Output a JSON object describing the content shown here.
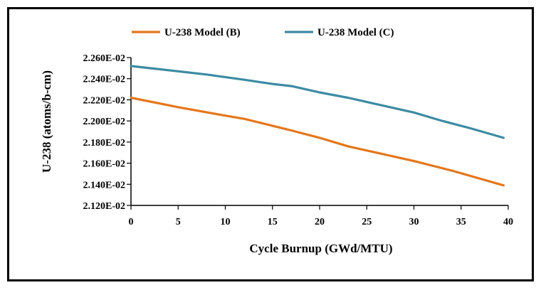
{
  "chart_data": {
    "type": "line",
    "title": "",
    "xlabel": "Cycle Burnup  (GWd/MTU)",
    "ylabel": "U-238 (atoms/b-cm)",
    "xlim": [
      0,
      40
    ],
    "ylim": [
      0.0212,
      0.0226
    ],
    "x_ticks": [
      0,
      5,
      10,
      15,
      20,
      25,
      30,
      35,
      40
    ],
    "y_ticks": [
      0.0212,
      0.0214,
      0.0216,
      0.0218,
      0.022,
      0.0222,
      0.0224,
      0.0226
    ],
    "y_tick_labels": [
      "2.120E-02",
      "2.140E-02",
      "2.160E-02",
      "2.180E-02",
      "2.200E-02",
      "2.220E-02",
      "2.240E-02",
      "2.260E-02"
    ],
    "grid": false,
    "legend_position": "top",
    "series": [
      {
        "name": "U-238 Model (B)",
        "color": "#e5761b",
        "x": [
          0,
          5,
          10,
          12,
          17,
          20,
          23,
          26,
          30,
          34,
          39.5
        ],
        "y": [
          0.02222,
          0.02213,
          0.02205,
          0.02202,
          0.02191,
          0.02184,
          0.02176,
          0.0217,
          0.02162,
          0.02153,
          0.02139
        ]
      },
      {
        "name": "U-238 Model (C)",
        "color": "#3c8ba3",
        "x": [
          0,
          2,
          5,
          8,
          12,
          15,
          17,
          20,
          23,
          26,
          30,
          33,
          36,
          39.5
        ],
        "y": [
          0.02252,
          0.0225,
          0.02247,
          0.02244,
          0.02239,
          0.02235,
          0.02233,
          0.02227,
          0.02222,
          0.02216,
          0.02208,
          0.022,
          0.02193,
          0.02184
        ]
      }
    ]
  }
}
